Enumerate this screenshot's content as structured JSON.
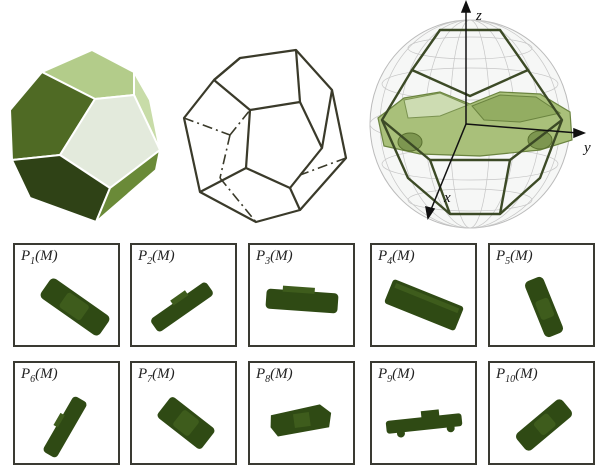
{
  "axes": {
    "x": "x",
    "y": "y",
    "z": "z"
  },
  "panels": [
    {
      "p": "P",
      "sub": "1",
      "arg": "(M)"
    },
    {
      "p": "P",
      "sub": "2",
      "arg": "(M)"
    },
    {
      "p": "P",
      "sub": "3",
      "arg": "(M)"
    },
    {
      "p": "P",
      "sub": "4",
      "arg": "(M)"
    },
    {
      "p": "P",
      "sub": "5",
      "arg": "(M)"
    },
    {
      "p": "P",
      "sub": "6",
      "arg": "(M)"
    },
    {
      "p": "P",
      "sub": "7",
      "arg": "(M)"
    },
    {
      "p": "P",
      "sub": "8",
      "arg": "(M)"
    },
    {
      "p": "P",
      "sub": "9",
      "arg": "(M)"
    },
    {
      "p": "P",
      "sub": "10",
      "arg": "(M)"
    }
  ],
  "colors": {
    "dark_green": "#2f4a14",
    "mid_green": "#5e7a32",
    "light_green": "#c7d9a3",
    "pale_green": "#e6eedb",
    "outline": "#3a3a32"
  }
}
